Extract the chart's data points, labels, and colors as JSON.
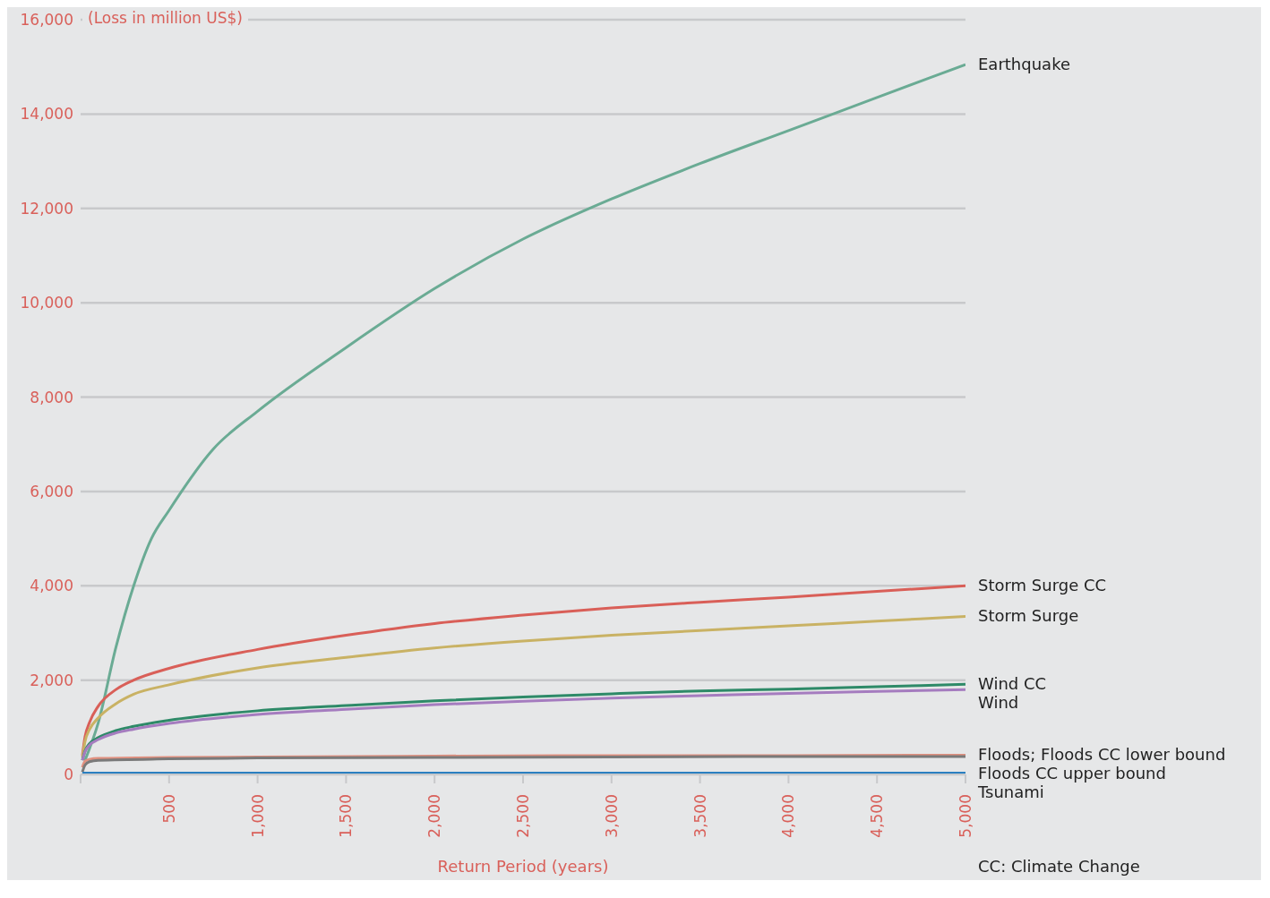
{
  "chart_data": {
    "type": "line",
    "xlabel": "Return Period (years)",
    "ylabel": "(Loss in million US$)",
    "annotations": [
      "CC: Climate Change"
    ],
    "xlim": [
      0,
      5000
    ],
    "xticks": [
      {
        "value": 0,
        "label": null
      },
      {
        "value": 500,
        "label": "500"
      },
      {
        "value": 1000,
        "label": "1,000"
      },
      {
        "value": 1500,
        "label": "1,500"
      },
      {
        "value": 2000,
        "label": "2,000"
      },
      {
        "value": 2500,
        "label": "2,500"
      },
      {
        "value": 3000,
        "label": "3,000"
      },
      {
        "value": 3500,
        "label": "3,500"
      },
      {
        "value": 4000,
        "label": "4,000"
      },
      {
        "value": 4500,
        "label": "4,500"
      },
      {
        "value": 5000,
        "label": "5,000"
      }
    ],
    "ylim": [
      0,
      16000
    ],
    "yticks": [
      {
        "value": 0,
        "label": "0"
      },
      {
        "value": 2000,
        "label": "2,000"
      },
      {
        "value": 4000,
        "label": "4,000"
      },
      {
        "value": 6000,
        "label": "6,000"
      },
      {
        "value": 8000,
        "label": "8,000"
      },
      {
        "value": 10000,
        "label": "10,000"
      },
      {
        "value": 12000,
        "label": "12,000"
      },
      {
        "value": 14000,
        "label": "14,000"
      },
      {
        "value": 16000,
        "label": "16,000"
      }
    ],
    "grid": "y",
    "marker": "none",
    "line_style": "solid",
    "series": [
      {
        "name": "Earthquake",
        "color": "#6aab94",
        "x": [
          25,
          100,
          200,
          300,
          400,
          500,
          750,
          1000,
          1500,
          2000,
          2500,
          3000,
          3500,
          4000,
          4500,
          5000
        ],
        "values": [
          300,
          1100,
          2700,
          4000,
          5000,
          5600,
          6900,
          7700,
          9050,
          10300,
          11350,
          12200,
          12950,
          13650,
          14350,
          15050
        ]
      },
      {
        "name": "Storm Surge CC",
        "color": "#d95f58",
        "x": [
          10,
          25,
          50,
          100,
          200,
          300,
          500,
          1000,
          1500,
          2000,
          2500,
          3000,
          3500,
          4000,
          4500,
          5000
        ],
        "values": [
          400,
          800,
          1100,
          1450,
          1800,
          2000,
          2250,
          2650,
          2950,
          3200,
          3380,
          3530,
          3650,
          3760,
          3880,
          4000
        ]
      },
      {
        "name": "Storm Surge",
        "color": "#c9b264",
        "x": [
          10,
          25,
          50,
          100,
          200,
          300,
          500,
          1000,
          1500,
          2000,
          2500,
          3000,
          3500,
          4000,
          4500,
          5000
        ],
        "values": [
          350,
          700,
          950,
          1200,
          1500,
          1700,
          1900,
          2260,
          2480,
          2680,
          2830,
          2950,
          3050,
          3150,
          3250,
          3350
        ]
      },
      {
        "name": "Wind CC",
        "color": "#2e8a68",
        "x": [
          10,
          25,
          50,
          100,
          200,
          300,
          500,
          1000,
          1500,
          2000,
          2500,
          3000,
          3500,
          4000,
          4500,
          5000
        ],
        "values": [
          300,
          500,
          650,
          780,
          930,
          1020,
          1150,
          1350,
          1460,
          1560,
          1640,
          1710,
          1770,
          1810,
          1860,
          1910
        ]
      },
      {
        "name": "Wind",
        "color": "#a57cbf",
        "x": [
          10,
          25,
          50,
          100,
          200,
          300,
          500,
          1000,
          1500,
          2000,
          2500,
          3000,
          3500,
          4000,
          4500,
          5000
        ],
        "values": [
          300,
          480,
          620,
          740,
          880,
          960,
          1080,
          1270,
          1380,
          1480,
          1550,
          1620,
          1670,
          1720,
          1760,
          1800
        ]
      },
      {
        "name": "Floods; Floods CC lower bound",
        "color": "#e0907f",
        "x": [
          10,
          25,
          50,
          100,
          500,
          1000,
          2000,
          3000,
          4000,
          5000
        ],
        "values": [
          150,
          280,
          320,
          340,
          360,
          370,
          390,
          400,
          400,
          410
        ]
      },
      {
        "name": "Floods CC upper bound",
        "color": "#7a7a7a",
        "x": [
          10,
          25,
          50,
          100,
          500,
          1000,
          2000,
          3000,
          4000,
          5000
        ],
        "values": [
          50,
          200,
          270,
          300,
          330,
          350,
          360,
          370,
          380,
          380
        ]
      },
      {
        "name": "Tsunami",
        "color": "#2a7fc0",
        "x": [
          10,
          2500,
          5000
        ],
        "values": [
          30,
          30,
          30
        ]
      }
    ]
  }
}
